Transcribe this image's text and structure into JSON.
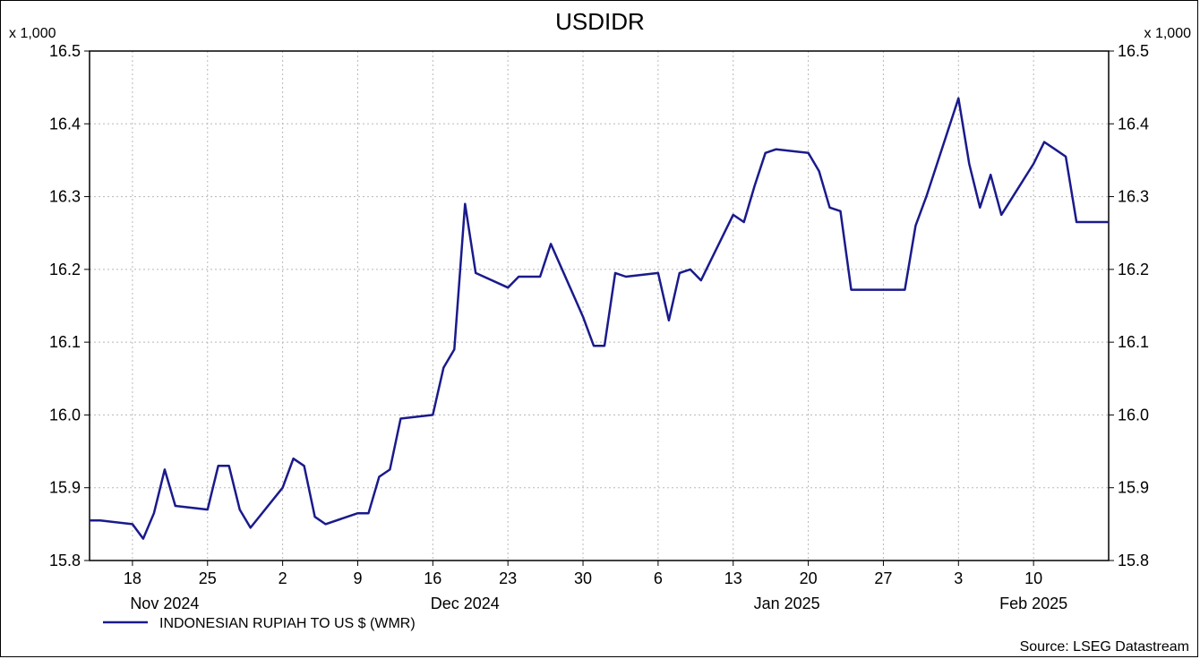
{
  "chart_data": {
    "type": "line",
    "title": "USDIDR",
    "y_multiplier_label": "x 1,000",
    "source": "Source: LSEG Datastream",
    "ylim": [
      15.8,
      16.5
    ],
    "yticks": [
      "15.8",
      "15.9",
      "16.0",
      "16.1",
      "16.2",
      "16.3",
      "16.4",
      "16.5"
    ],
    "xlim": [
      "2024-11-14",
      "2025-02-17"
    ],
    "x_ticks": [
      {
        "date": "2024-11-18",
        "label": "18"
      },
      {
        "date": "2024-11-25",
        "label": "25"
      },
      {
        "date": "2024-12-02",
        "label": "2"
      },
      {
        "date": "2024-12-09",
        "label": "9"
      },
      {
        "date": "2024-12-16",
        "label": "16"
      },
      {
        "date": "2024-12-23",
        "label": "23"
      },
      {
        "date": "2024-12-30",
        "label": "30"
      },
      {
        "date": "2025-01-06",
        "label": "6"
      },
      {
        "date": "2025-01-13",
        "label": "13"
      },
      {
        "date": "2025-01-20",
        "label": "20"
      },
      {
        "date": "2025-01-27",
        "label": "27"
      },
      {
        "date": "2025-02-03",
        "label": "3"
      },
      {
        "date": "2025-02-10",
        "label": "10"
      }
    ],
    "month_labels": [
      {
        "date": "2024-11-21",
        "label": "Nov 2024"
      },
      {
        "date": "2024-12-19",
        "label": "Dec 2024"
      },
      {
        "date": "2025-01-18",
        "label": "Jan 2025"
      },
      {
        "date": "2025-02-10",
        "label": "Feb 2025"
      }
    ],
    "grid": true,
    "legend_position": "bottom-left",
    "series": [
      {
        "name": "INDONESIAN RUPIAH TO US $ (WMR)",
        "color": "#1a1a8c",
        "x": [
          "2024-11-14",
          "2024-11-15",
          "2024-11-18",
          "2024-11-19",
          "2024-11-20",
          "2024-11-21",
          "2024-11-22",
          "2024-11-25",
          "2024-11-26",
          "2024-11-27",
          "2024-11-28",
          "2024-11-29",
          "2024-12-02",
          "2024-12-03",
          "2024-12-04",
          "2024-12-05",
          "2024-12-06",
          "2024-12-09",
          "2024-12-10",
          "2024-12-11",
          "2024-12-12",
          "2024-12-13",
          "2024-12-16",
          "2024-12-17",
          "2024-12-18",
          "2024-12-19",
          "2024-12-20",
          "2024-12-23",
          "2024-12-24",
          "2024-12-25",
          "2024-12-26",
          "2024-12-27",
          "2024-12-30",
          "2024-12-31",
          "2025-01-01",
          "2025-01-02",
          "2025-01-03",
          "2025-01-06",
          "2025-01-07",
          "2025-01-08",
          "2025-01-09",
          "2025-01-10",
          "2025-01-13",
          "2025-01-14",
          "2025-01-15",
          "2025-01-16",
          "2025-01-17",
          "2025-01-20",
          "2025-01-21",
          "2025-01-22",
          "2025-01-23",
          "2025-01-24",
          "2025-01-27",
          "2025-01-28",
          "2025-01-29",
          "2025-01-30",
          "2025-01-31",
          "2025-02-03",
          "2025-02-04",
          "2025-02-05",
          "2025-02-06",
          "2025-02-07",
          "2025-02-10",
          "2025-02-11",
          "2025-02-12",
          "2025-02-13",
          "2025-02-14",
          "2025-02-17"
        ],
        "values": [
          15.855,
          15.855,
          15.85,
          15.83,
          15.865,
          15.925,
          15.875,
          15.87,
          15.93,
          15.93,
          15.87,
          15.845,
          15.9,
          15.94,
          15.93,
          15.86,
          15.85,
          15.865,
          15.865,
          15.915,
          15.925,
          15.995,
          16.0,
          16.065,
          16.09,
          16.29,
          16.195,
          16.175,
          16.19,
          16.19,
          16.19,
          16.235,
          16.135,
          16.095,
          16.095,
          16.195,
          16.19,
          16.195,
          16.13,
          16.195,
          16.2,
          16.185,
          16.275,
          16.265,
          16.315,
          16.36,
          16.365,
          16.36,
          16.335,
          16.285,
          16.28,
          16.172,
          16.172,
          16.172,
          16.172,
          16.26,
          16.3,
          16.435,
          16.345,
          16.285,
          16.33,
          16.275,
          16.345,
          16.375,
          16.365,
          16.355,
          16.265,
          16.265
        ]
      }
    ]
  }
}
